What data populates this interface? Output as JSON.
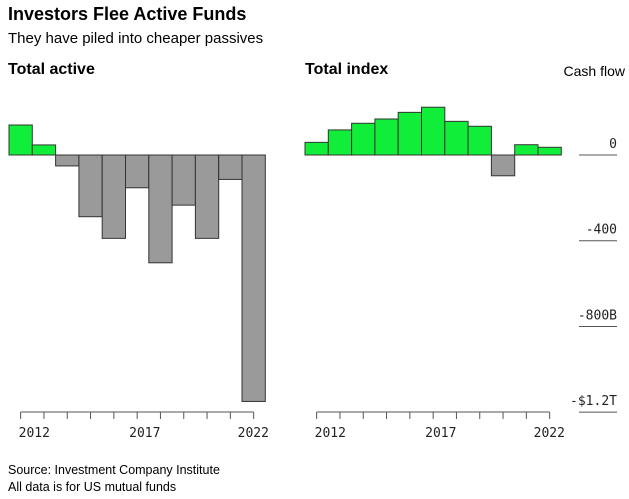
{
  "title": "Investors Flee Active Funds",
  "subtitle": "They have piled into cheaper passives",
  "footer": {
    "source": "Source: Investment Company Institute",
    "note": "All data is for US mutual funds"
  },
  "colors": {
    "positive": "#11ee3a",
    "negative": "#9a9a9a"
  },
  "chart_data": [
    {
      "type": "bar",
      "title": "Total active",
      "categories": [
        2012,
        2013,
        2014,
        2015,
        2016,
        2017,
        2018,
        2019,
        2020,
        2021,
        2022
      ],
      "tick_labels": [
        "2012",
        "2017",
        "2022"
      ],
      "values": [
        140,
        47,
        -51,
        -288,
        -389,
        -153,
        -503,
        -234,
        -389,
        -114,
        -1150
      ],
      "ylim": [
        -1200,
        200
      ]
    },
    {
      "type": "bar",
      "title": "Total index",
      "ylabel": "Cash flow",
      "categories": [
        2012,
        2013,
        2014,
        2015,
        2016,
        2017,
        2018,
        2019,
        2020,
        2021,
        2022
      ],
      "tick_labels": [
        "2012",
        "2017",
        "2022"
      ],
      "values": [
        59,
        117,
        148,
        168,
        199,
        223,
        157,
        134,
        -97,
        48,
        36
      ],
      "ylim": [
        -1200,
        200
      ],
      "y_ticks": [
        {
          "value": 0,
          "label": "0"
        },
        {
          "value": -400,
          "label": "-400"
        },
        {
          "value": -800,
          "label": "-800B"
        },
        {
          "value": -1200,
          "label": "-$1.2T"
        }
      ]
    }
  ]
}
